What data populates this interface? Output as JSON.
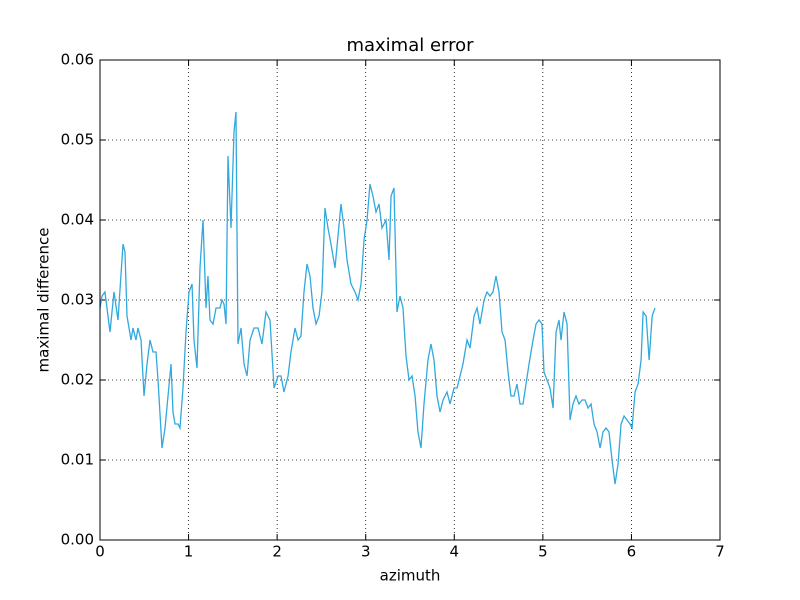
{
  "chart_data": {
    "type": "line",
    "title": "maximal error",
    "xlabel": "azimuth",
    "ylabel": "maximal difference",
    "x": [
      0,
      0.023,
      0.056,
      0.113,
      0.158,
      0.203,
      0.26,
      0.282,
      0.305,
      0.35,
      0.373,
      0.406,
      0.429,
      0.463,
      0.497,
      0.531,
      0.565,
      0.598,
      0.632,
      0.655,
      0.7,
      0.734,
      0.768,
      0.802,
      0.824,
      0.847,
      0.881,
      0.903,
      0.937,
      0.971,
      1.005,
      1.039,
      1.061,
      1.095,
      1.129,
      1.163,
      1.197,
      1.219,
      1.242,
      1.276,
      1.31,
      1.355,
      1.377,
      1.4,
      1.423,
      1.445,
      1.479,
      1.513,
      1.535,
      1.558,
      1.592,
      1.626,
      1.66,
      1.694,
      1.739,
      1.784,
      1.829,
      1.874,
      1.919,
      1.965,
      2.01,
      2.044,
      2.077,
      2.123,
      2.156,
      2.202,
      2.236,
      2.269,
      2.303,
      2.337,
      2.371,
      2.405,
      2.439,
      2.473,
      2.506,
      2.54,
      2.574,
      2.608,
      2.653,
      2.687,
      2.721,
      2.755,
      2.789,
      2.834,
      2.879,
      2.913,
      2.947,
      2.981,
      3.015,
      3.048,
      3.082,
      3.116,
      3.15,
      3.184,
      3.229,
      3.263,
      3.286,
      3.319,
      3.353,
      3.387,
      3.421,
      3.455,
      3.489,
      3.523,
      3.557,
      3.59,
      3.624,
      3.658,
      3.703,
      3.737,
      3.771,
      3.805,
      3.839,
      3.873,
      3.918,
      3.952,
      3.997,
      4.031,
      4.065,
      4.098,
      4.144,
      4.178,
      4.223,
      4.257,
      4.29,
      4.336,
      4.369,
      4.403,
      4.437,
      4.471,
      4.505,
      4.539,
      4.573,
      4.607,
      4.64,
      4.674,
      4.708,
      4.742,
      4.776,
      4.81,
      4.844,
      4.889,
      4.923,
      4.957,
      4.99,
      5.013,
      5.047,
      5.081,
      5.115,
      5.149,
      5.182,
      5.205,
      5.239,
      5.273,
      5.307,
      5.34,
      5.374,
      5.408,
      5.442,
      5.476,
      5.51,
      5.544,
      5.578,
      5.612,
      5.646,
      5.679,
      5.713,
      5.747,
      5.781,
      5.815,
      5.849,
      5.883,
      5.917,
      5.95,
      5.984,
      6.007,
      6.041,
      6.075,
      6.109,
      6.132,
      6.166,
      6.2,
      6.234,
      6.266
    ],
    "series": [
      {
        "color": "#30a9de",
        "values": [
          0.029,
          0.0305,
          0.031,
          0.026,
          0.031,
          0.0275,
          0.037,
          0.036,
          0.028,
          0.025,
          0.0265,
          0.025,
          0.0265,
          0.025,
          0.018,
          0.022,
          0.025,
          0.0235,
          0.0235,
          0.02,
          0.0115,
          0.014,
          0.018,
          0.022,
          0.016,
          0.0145,
          0.0145,
          0.014,
          0.019,
          0.026,
          0.031,
          0.032,
          0.025,
          0.0215,
          0.034,
          0.04,
          0.029,
          0.033,
          0.0275,
          0.027,
          0.029,
          0.029,
          0.03,
          0.0295,
          0.027,
          0.048,
          0.039,
          0.051,
          0.0535,
          0.0245,
          0.0265,
          0.022,
          0.0205,
          0.025,
          0.0265,
          0.0265,
          0.0245,
          0.0285,
          0.0275,
          0.019,
          0.0205,
          0.0205,
          0.0185,
          0.0205,
          0.0235,
          0.0265,
          0.025,
          0.0255,
          0.031,
          0.0345,
          0.033,
          0.029,
          0.027,
          0.028,
          0.031,
          0.0415,
          0.039,
          0.037,
          0.034,
          0.038,
          0.042,
          0.039,
          0.035,
          0.032,
          0.031,
          0.03,
          0.032,
          0.0375,
          0.04,
          0.0445,
          0.043,
          0.041,
          0.042,
          0.039,
          0.04,
          0.035,
          0.043,
          0.044,
          0.0285,
          0.0305,
          0.029,
          0.023,
          0.02,
          0.0205,
          0.018,
          0.0135,
          0.0115,
          0.017,
          0.0225,
          0.0245,
          0.0225,
          0.018,
          0.016,
          0.0175,
          0.0185,
          0.017,
          0.019,
          0.019,
          0.0205,
          0.022,
          0.025,
          0.024,
          0.028,
          0.029,
          0.027,
          0.03,
          0.031,
          0.0305,
          0.031,
          0.033,
          0.031,
          0.026,
          0.025,
          0.021,
          0.018,
          0.018,
          0.0195,
          0.017,
          0.017,
          0.0195,
          0.022,
          0.025,
          0.027,
          0.0275,
          0.027,
          0.021,
          0.02,
          0.019,
          0.0165,
          0.026,
          0.0275,
          0.025,
          0.0285,
          0.027,
          0.015,
          0.017,
          0.018,
          0.017,
          0.0175,
          0.0175,
          0.0165,
          0.017,
          0.0145,
          0.0135,
          0.0115,
          0.0135,
          0.014,
          0.0135,
          0.01,
          0.007,
          0.0095,
          0.0145,
          0.0155,
          0.015,
          0.0145,
          0.014,
          0.0185,
          0.0195,
          0.0225,
          0.0285,
          0.028,
          0.0225,
          0.028,
          0.029
        ]
      }
    ],
    "xlim": [
      0,
      7
    ],
    "xticks": [
      0,
      1,
      2,
      3,
      4,
      5,
      6,
      7
    ],
    "ylim": [
      0,
      0.06
    ],
    "yticks": [
      {
        "value": 0,
        "label": "0.00"
      },
      {
        "value": 0.01,
        "label": "0.01"
      },
      {
        "value": 0.02,
        "label": "0.02"
      },
      {
        "value": 0.03,
        "label": "0.03"
      },
      {
        "value": 0.04,
        "label": "0.04"
      },
      {
        "value": 0.05,
        "label": "0.05"
      },
      {
        "value": 0.06,
        "label": "0.06"
      }
    ],
    "grid": true
  }
}
